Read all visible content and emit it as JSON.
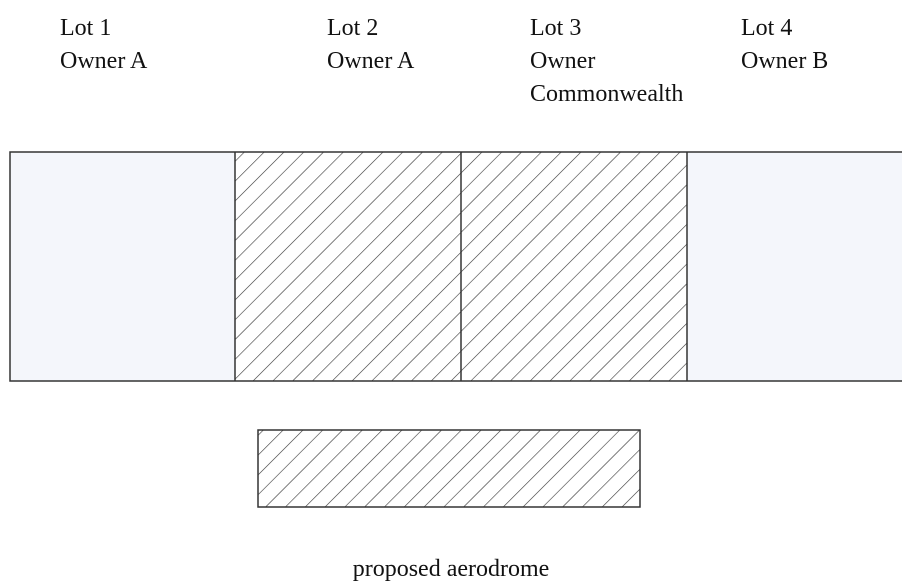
{
  "lots": [
    {
      "label": "Lot 1",
      "owner": "Owner A"
    },
    {
      "label": "Lot 2",
      "owner": "Owner A"
    },
    {
      "label": "Lot 3",
      "owner": "Owner Commonwealth"
    },
    {
      "label": "Lot 4",
      "owner": "Owner B"
    }
  ],
  "legend": {
    "label": "proposed aerodrome"
  }
}
